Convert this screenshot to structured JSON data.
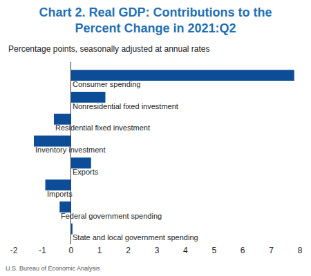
{
  "chart_data": {
    "type": "bar",
    "orientation": "horizontal",
    "title": "Chart 2. Real GDP: Contributions to the Percent Change in 2021:Q2",
    "subtitle": "Percentage points, seasonally adjusted at annual rates",
    "source": "U.S. Bureau of Economic Analysis",
    "categories": [
      "Consumer spending",
      "Nonresidential fixed investment",
      "Residential fixed investment",
      "Inventory investment",
      "Exports",
      "Imports",
      "Federal government spending",
      "State and local government spending"
    ],
    "values": [
      7.8,
      1.2,
      -0.6,
      -1.3,
      0.7,
      -0.9,
      -0.4,
      0.05
    ],
    "color": "#0d4c97",
    "xlim": [
      -2,
      8
    ],
    "xticks": [
      -2,
      -1,
      0,
      1,
      2,
      3,
      4,
      5,
      6,
      7,
      8
    ],
    "grid": false,
    "tick_labels": "x"
  }
}
